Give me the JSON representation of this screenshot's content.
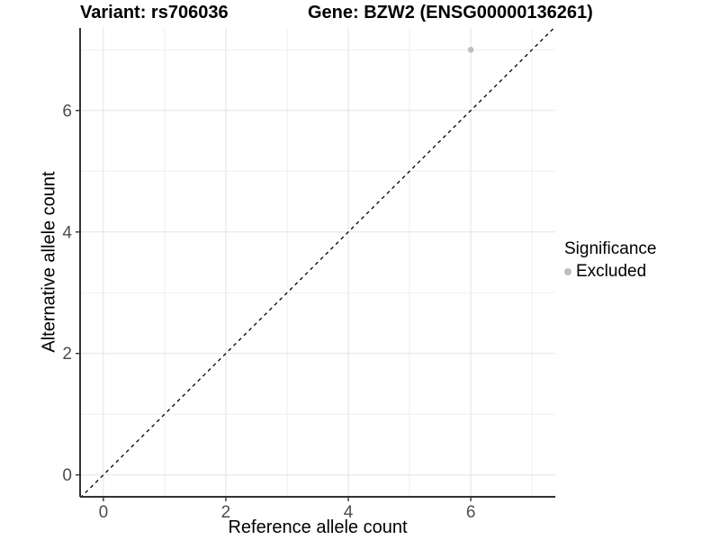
{
  "figure": {
    "title_left": "Variant: rs706036",
    "title_right": "Gene: BZW2 (ENSG00000136261)"
  },
  "chart_data": {
    "type": "scatter",
    "title": "Variant: rs706036 | Gene: BZW2 (ENSG00000136261)",
    "xlabel": "Reference allele count",
    "ylabel": "Alternative allele count",
    "xlim": [
      -0.38,
      7.38
    ],
    "ylim": [
      -0.36,
      7.36
    ],
    "xticks": [
      0,
      2,
      4,
      6
    ],
    "yticks": [
      0,
      2,
      4,
      6
    ],
    "minor_xticks": [
      1,
      3,
      5,
      7
    ],
    "minor_yticks": [
      1,
      3,
      5,
      7
    ],
    "grid": true,
    "legend_position": "right",
    "series": [
      {
        "name": "Excluded",
        "points": [
          {
            "x": 6,
            "y": 7
          }
        ],
        "color": "#bebebe"
      }
    ],
    "reference_line": {
      "slope": 1,
      "intercept": 0,
      "style": "dashed",
      "color": "#000000"
    },
    "legend": {
      "title": "Significance",
      "items": [
        {
          "label": "Excluded",
          "color": "#bebebe"
        }
      ]
    }
  },
  "style": {
    "grid_major_color": "#e3e3e3",
    "grid_minor_color": "#efefef",
    "axis_line_color": "#333333",
    "tick_mark_color": "#333333",
    "tick_label_color": "#4d4d4d",
    "point_color": "#bebebe",
    "background_color": "#ffffff"
  }
}
